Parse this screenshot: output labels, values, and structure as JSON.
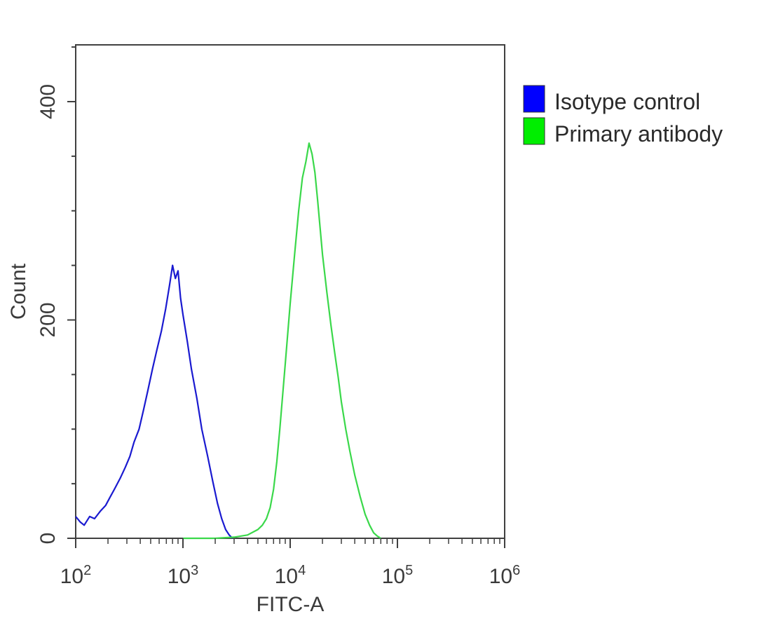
{
  "chart_data": {
    "type": "line",
    "title": "",
    "xlabel": "FITC-A",
    "ylabel": "Count",
    "x_scale": "log",
    "xlim": [
      100,
      1000000
    ],
    "ylim": [
      0,
      450
    ],
    "x_ticks": [
      {
        "value": 100,
        "base": "10",
        "exp": "2"
      },
      {
        "value": 1000,
        "base": "10",
        "exp": "3"
      },
      {
        "value": 10000,
        "base": "10",
        "exp": "4"
      },
      {
        "value": 100000,
        "base": "10",
        "exp": "5"
      },
      {
        "value": 1000000,
        "base": "10",
        "exp": "6"
      }
    ],
    "y_ticks": [
      {
        "value": 0,
        "label": "0"
      },
      {
        "value": 200,
        "label": "200"
      },
      {
        "value": 400,
        "label": "400"
      }
    ],
    "legend_position": "right-top, outside plot",
    "grid": false,
    "series": [
      {
        "name": "Isotype control",
        "color": "#1a1ad0",
        "legend_swatch": "#0000ff",
        "x": [
          100,
          110,
          120,
          135,
          150,
          170,
          190,
          210,
          230,
          260,
          290,
          320,
          350,
          390,
          430,
          470,
          520,
          570,
          630,
          690,
          750,
          800,
          850,
          900,
          950,
          1000,
          1100,
          1200,
          1350,
          1500,
          1700,
          1900,
          2100,
          2300,
          2500,
          2700,
          2900
        ],
        "y": [
          20,
          15,
          12,
          20,
          18,
          25,
          30,
          38,
          45,
          55,
          65,
          75,
          88,
          100,
          118,
          135,
          155,
          172,
          190,
          210,
          232,
          250,
          238,
          245,
          220,
          205,
          180,
          155,
          128,
          100,
          75,
          52,
          32,
          18,
          8,
          3,
          0
        ]
      },
      {
        "name": "Primary antibody",
        "color": "#3ad84a",
        "legend_swatch": "#00ee00",
        "x": [
          1000,
          2000,
          3000,
          4000,
          5000,
          5500,
          6000,
          6500,
          7000,
          7500,
          8000,
          9000,
          10000,
          11000,
          12000,
          13000,
          14000,
          15000,
          16000,
          17000,
          18000,
          19000,
          20000,
          22000,
          24000,
          26000,
          28000,
          30000,
          33000,
          36000,
          40000,
          45000,
          50000,
          55000,
          60000,
          65000,
          70000
        ],
        "y": [
          0,
          0,
          1,
          3,
          8,
          12,
          18,
          28,
          45,
          70,
          100,
          160,
          215,
          260,
          300,
          330,
          345,
          362,
          352,
          335,
          310,
          285,
          260,
          225,
          195,
          170,
          148,
          125,
          100,
          80,
          58,
          38,
          22,
          12,
          5,
          2,
          0
        ]
      }
    ]
  }
}
